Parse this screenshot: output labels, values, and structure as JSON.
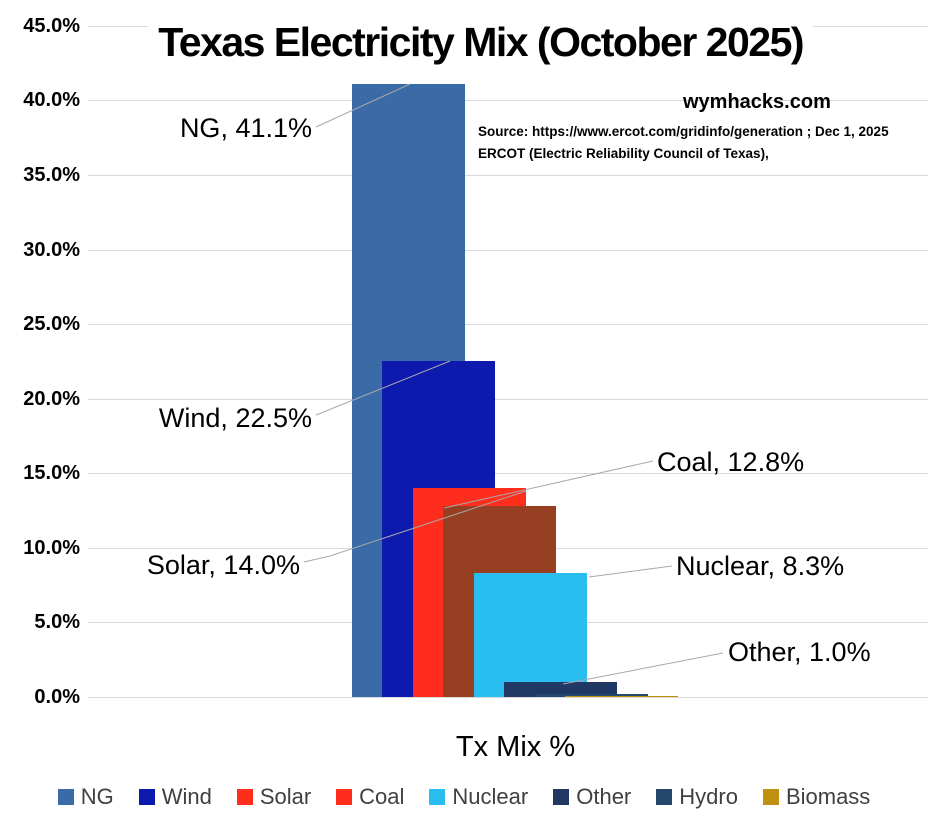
{
  "title": "Texas Electricity Mix (October 2025)",
  "watermark": "wymhacks.com",
  "source": {
    "line1": "Source: https://www.ercot.com/gridinfo/generation ; Dec 1, 2025",
    "line2": "ERCOT (Electric Reliability Council of Texas),"
  },
  "x_axis_label": "Tx Mix %",
  "chart_data": {
    "type": "bar",
    "title": "Texas Electricity Mix (October 2025)",
    "categories": [
      "Tx Mix %"
    ],
    "series": [
      {
        "name": "NG",
        "value": 41.1,
        "label": "NG, 41.1%",
        "color": "#3A6BA6",
        "legend_color": "#3A6BA6"
      },
      {
        "name": "Wind",
        "value": 22.5,
        "label": "Wind, 22.5%",
        "color": "#0D1AAD",
        "legend_color": "#0D1AAD"
      },
      {
        "name": "Solar",
        "value": 14.0,
        "label": "Solar, 14.0%",
        "color": "#FF2E1C",
        "legend_color": "#FF2E1C"
      },
      {
        "name": "Coal",
        "value": 12.8,
        "label": "Coal, 12.8%",
        "color": "#963F22",
        "legend_color": "#FF2E1C"
      },
      {
        "name": "Nuclear",
        "value": 8.3,
        "label": "Nuclear, 8.3%",
        "color": "#29BEEF",
        "legend_color": "#29BEEF"
      },
      {
        "name": "Other",
        "value": 1.0,
        "label": "Other, 1.0%",
        "color": "#1F3864",
        "legend_color": "#1F3864"
      },
      {
        "name": "Hydro",
        "value": 0.2,
        "label": null,
        "color": "#24476E",
        "legend_color": "#24476E"
      },
      {
        "name": "Biomass",
        "value": 0.1,
        "label": null,
        "color": "#BF8F0E",
        "legend_color": "#BF8F0E"
      }
    ],
    "xlabel": "Tx Mix %",
    "ylabel": "",
    "ylim": [
      0,
      45
    ],
    "y_tick_labels": [
      "45.0%",
      "40.0%",
      "35.0%",
      "30.0%",
      "25.0%",
      "20.0%",
      "15.0%",
      "10.0%",
      "5.0%",
      "0.0%"
    ],
    "grid": true,
    "legend_position": "bottom",
    "legend_entries": [
      "NG",
      "Wind",
      "Solar",
      "Coal",
      "Nuclear",
      "Other",
      "Hydro",
      "Biomass"
    ]
  },
  "colors": {
    "gridline": "#D9D9D9",
    "leader_line": "#A9A9A9",
    "legend_text": "#404040",
    "background": "#FFFFFF"
  }
}
